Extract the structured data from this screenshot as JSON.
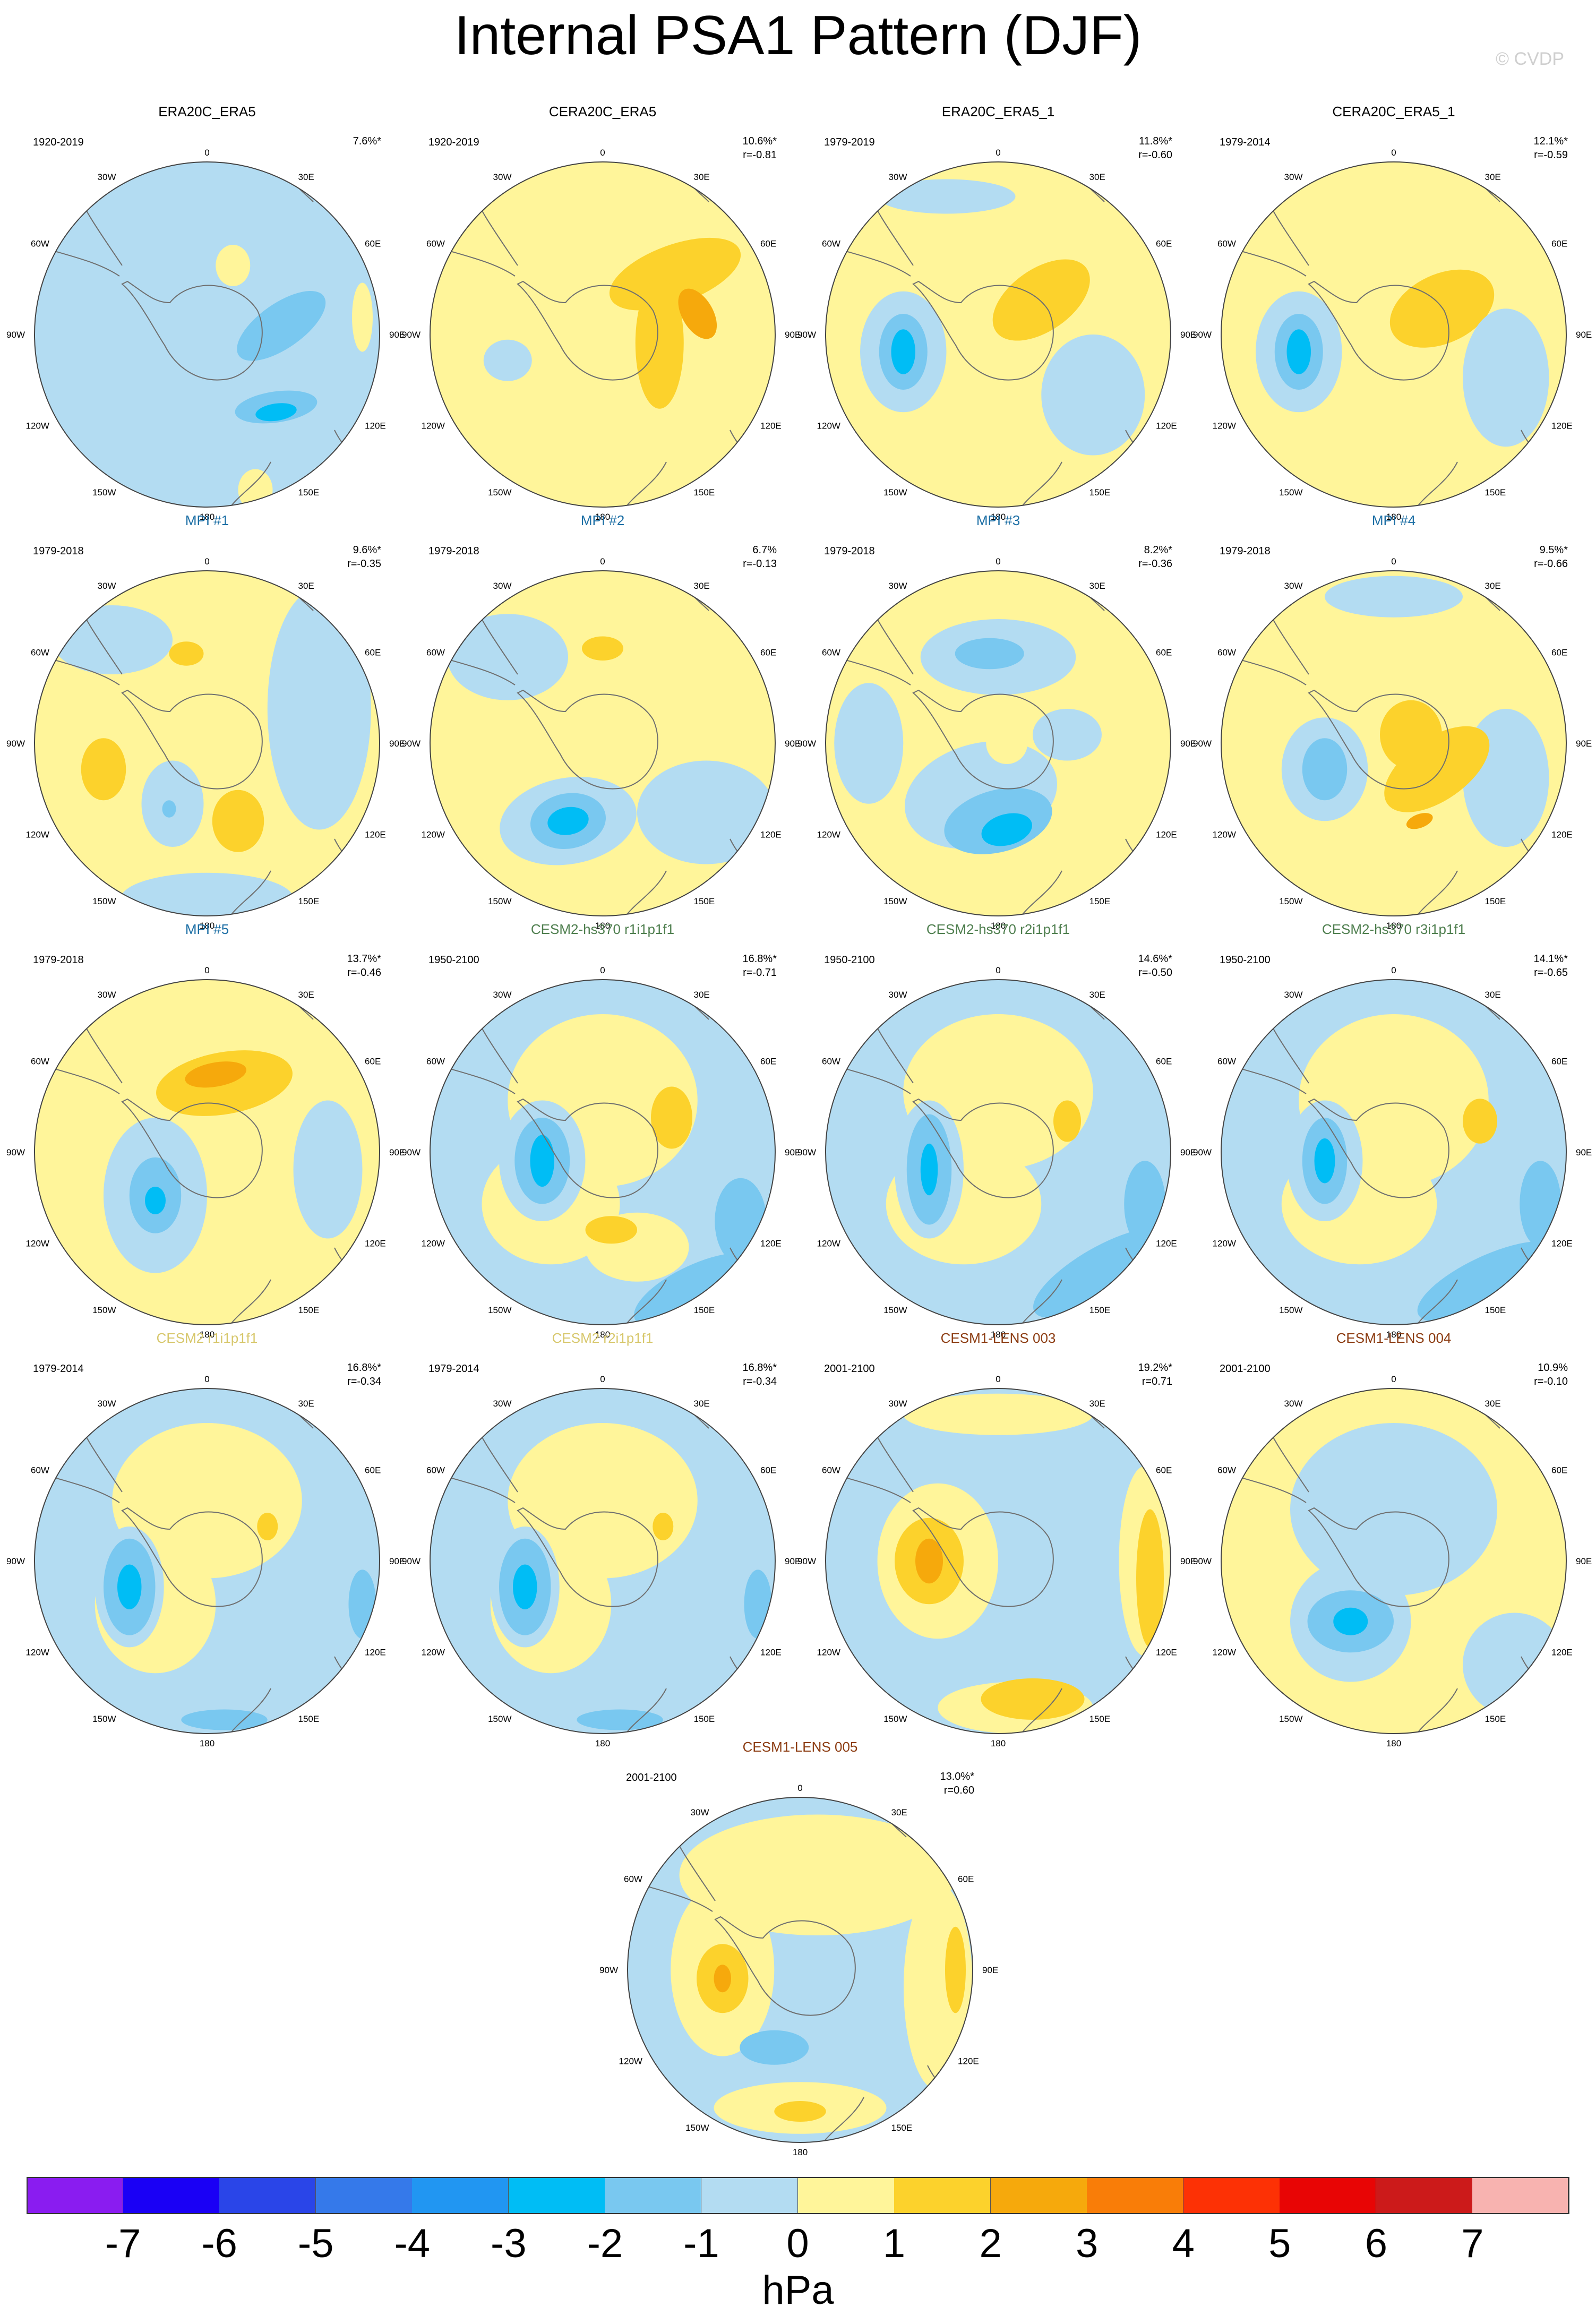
{
  "title": "Internal PSA1 Pattern (DJF)",
  "credit": "© CVDP",
  "colors": {
    "y1": "#fff59a",
    "y2": "#fcd22c",
    "y3": "#f6a90c",
    "b1": "#b3dcf2",
    "b2": "#79c8f0",
    "b3": "#00bdf5",
    "land": "none",
    "coast": "#6f6f6f",
    "border": "#444444"
  },
  "longitude_labels": [
    "0",
    "30E",
    "60E",
    "90E",
    "120E",
    "150E",
    "180",
    "150W",
    "120W",
    "90W",
    "60W",
    "30W"
  ],
  "panels": [
    {
      "title": "ERA20C_ERA5",
      "title_color": "#000000",
      "period": "1920-2019",
      "pct": "7.6%*",
      "r": "",
      "base": "b1",
      "blobs": [
        [
          "b2",
          0.43,
          -0.05,
          0.3,
          0.13,
          -35
        ],
        [
          "b2",
          0.4,
          0.42,
          0.24,
          0.09,
          -8
        ],
        [
          "b3",
          0.4,
          0.45,
          0.12,
          0.05,
          -8
        ],
        [
          "y1",
          0.15,
          -0.4,
          0.1,
          0.12,
          0
        ],
        [
          "y1",
          0.28,
          0.9,
          0.1,
          0.12,
          0
        ],
        [
          "y1",
          0.9,
          -0.1,
          0.06,
          0.2,
          0
        ]
      ]
    },
    {
      "title": "CERA20C_ERA5",
      "title_color": "#000000",
      "period": "1920-2019",
      "pct": "10.6%*",
      "r": "r=-0.81",
      "base": "y1",
      "blobs": [
        [
          "y2",
          0.42,
          -0.35,
          0.4,
          0.17,
          -20
        ],
        [
          "y2",
          0.33,
          0.05,
          0.14,
          0.38,
          0
        ],
        [
          "y3",
          0.55,
          -0.12,
          0.09,
          0.16,
          -30
        ],
        [
          "b1",
          -0.55,
          0.15,
          0.14,
          0.12,
          0
        ]
      ]
    },
    {
      "title": "ERA20C_ERA5_1",
      "title_color": "#000000",
      "period": "1979-2019",
      "pct": "11.8%*",
      "r": "r=-0.60",
      "base": "y1",
      "blobs": [
        [
          "y2",
          0.25,
          -0.2,
          0.32,
          0.18,
          -35
        ],
        [
          "b1",
          -0.55,
          0.1,
          0.25,
          0.35,
          0
        ],
        [
          "b1",
          0.55,
          0.35,
          0.3,
          0.35,
          0
        ],
        [
          "b1",
          -0.3,
          -0.8,
          0.4,
          0.1,
          0
        ],
        [
          "b2",
          -0.55,
          0.1,
          0.14,
          0.22,
          0
        ],
        [
          "b3",
          -0.55,
          0.1,
          0.07,
          0.13,
          0
        ]
      ]
    },
    {
      "title": "CERA20C_ERA5_1",
      "title_color": "#000000",
      "period": "1979-2014",
      "pct": "12.1%*",
      "r": "r=-0.59",
      "base": "y1",
      "blobs": [
        [
          "y2",
          0.28,
          -0.15,
          0.32,
          0.2,
          -25
        ],
        [
          "b1",
          -0.55,
          0.1,
          0.25,
          0.35,
          0
        ],
        [
          "b1",
          0.65,
          0.25,
          0.25,
          0.4,
          0
        ],
        [
          "b2",
          -0.55,
          0.1,
          0.14,
          0.22,
          0
        ],
        [
          "b3",
          -0.55,
          0.1,
          0.07,
          0.13,
          0
        ]
      ]
    },
    {
      "title": "MPI #1",
      "title_color": "#1d6fa5",
      "period": "1979-2018",
      "pct": "9.6%*",
      "r": "r=-0.35",
      "base": "y1",
      "blobs": [
        [
          "b1",
          0.65,
          -0.2,
          0.3,
          0.7,
          0
        ],
        [
          "b1",
          -0.55,
          -0.6,
          0.35,
          0.2,
          0
        ],
        [
          "b1",
          0.0,
          0.9,
          0.5,
          0.15,
          0
        ],
        [
          "b1",
          -0.2,
          0.35,
          0.18,
          0.25,
          0
        ],
        [
          "y2",
          -0.6,
          0.15,
          0.13,
          0.18,
          0
        ],
        [
          "y2",
          0.18,
          0.45,
          0.15,
          0.18,
          0
        ],
        [
          "y2",
          -0.12,
          -0.52,
          0.1,
          0.07,
          0
        ],
        [
          "b2",
          -0.22,
          0.38,
          0.04,
          0.05,
          0
        ]
      ]
    },
    {
      "title": "MPI #2",
      "title_color": "#1d6fa5",
      "period": "1979-2018",
      "pct": "6.7%",
      "r": "r=-0.13",
      "base": "y1",
      "blobs": [
        [
          "b1",
          -0.55,
          -0.5,
          0.35,
          0.25,
          0
        ],
        [
          "b1",
          -0.2,
          0.45,
          0.4,
          0.25,
          -10
        ],
        [
          "b1",
          0.6,
          0.4,
          0.4,
          0.3,
          0
        ],
        [
          "b2",
          -0.2,
          0.45,
          0.22,
          0.16,
          -10
        ],
        [
          "b3",
          -0.2,
          0.45,
          0.12,
          0.08,
          -10
        ],
        [
          "y2",
          0.0,
          -0.55,
          0.12,
          0.07,
          0
        ]
      ]
    },
    {
      "title": "MPI #3",
      "title_color": "#1d6fa5",
      "period": "1979-2018",
      "pct": "8.2%*",
      "r": "r=-0.36",
      "base": "y1",
      "blobs": [
        [
          "b1",
          0.0,
          -0.5,
          0.45,
          0.22,
          0
        ],
        [
          "b1",
          -0.1,
          0.3,
          0.45,
          0.3,
          -15
        ],
        [
          "b1",
          -0.75,
          0.0,
          0.2,
          0.35,
          0
        ],
        [
          "b1",
          0.4,
          -0.05,
          0.2,
          0.15,
          0
        ],
        [
          "b2",
          0.0,
          0.45,
          0.32,
          0.18,
          -15
        ],
        [
          "b3",
          0.05,
          0.5,
          0.15,
          0.09,
          -15
        ],
        [
          "b2",
          -0.05,
          -0.52,
          0.2,
          0.09,
          0
        ],
        [
          "y1",
          0.05,
          0.0,
          0.12,
          0.12,
          0
        ]
      ]
    },
    {
      "title": "MPI #4",
      "title_color": "#1d6fa5",
      "period": "1979-2018",
      "pct": "9.5%*",
      "r": "r=-0.66",
      "base": "y1",
      "blobs": [
        [
          "b1",
          -0.4,
          0.15,
          0.25,
          0.3,
          0
        ],
        [
          "b1",
          0.65,
          0.2,
          0.25,
          0.4,
          0
        ],
        [
          "b1",
          0.0,
          -0.85,
          0.4,
          0.12,
          0
        ],
        [
          "y2",
          0.25,
          0.15,
          0.35,
          0.18,
          -35
        ],
        [
          "y2",
          0.1,
          -0.05,
          0.18,
          0.2,
          0
        ],
        [
          "b2",
          -0.4,
          0.15,
          0.13,
          0.18,
          0
        ],
        [
          "y3",
          0.15,
          0.45,
          0.08,
          0.04,
          -20
        ]
      ]
    },
    {
      "title": "MPI #5",
      "title_color": "#1d6fa5",
      "period": "1979-2018",
      "pct": "13.7%*",
      "r": "r=-0.46",
      "base": "y1",
      "blobs": [
        [
          "y2",
          0.1,
          -0.4,
          0.4,
          0.18,
          -10
        ],
        [
          "y3",
          0.05,
          -0.45,
          0.18,
          0.07,
          -10
        ],
        [
          "b1",
          -0.3,
          0.25,
          0.3,
          0.45,
          0
        ],
        [
          "b1",
          0.7,
          0.1,
          0.2,
          0.4,
          0
        ],
        [
          "b2",
          -0.3,
          0.25,
          0.15,
          0.22,
          0
        ],
        [
          "b3",
          -0.3,
          0.28,
          0.06,
          0.08,
          0
        ]
      ]
    },
    {
      "title": "CESM2-hs370 r1i1p1f1",
      "title_color": "#4f7f4f",
      "period": "1950-2100",
      "pct": "16.8%*",
      "r": "r=-0.71",
      "base": "b1",
      "blobs": [
        [
          "y1",
          0.0,
          -0.3,
          0.55,
          0.5,
          0
        ],
        [
          "y1",
          -0.3,
          0.3,
          0.4,
          0.35,
          0
        ],
        [
          "y1",
          0.2,
          0.55,
          0.3,
          0.2,
          0
        ],
        [
          "y2",
          0.4,
          -0.2,
          0.12,
          0.18,
          0
        ],
        [
          "y2",
          0.05,
          0.45,
          0.15,
          0.08,
          0
        ],
        [
          "b1",
          -0.35,
          0.05,
          0.25,
          0.35,
          0
        ],
        [
          "b2",
          -0.35,
          0.05,
          0.16,
          0.25,
          0
        ],
        [
          "b3",
          -0.35,
          0.05,
          0.07,
          0.15,
          0
        ],
        [
          "b2",
          0.55,
          0.8,
          0.4,
          0.15,
          -25
        ],
        [
          "b2",
          0.8,
          0.4,
          0.15,
          0.25,
          0
        ]
      ]
    },
    {
      "title": "CESM2-hs370 r2i1p1f1",
      "title_color": "#4f7f4f",
      "period": "1950-2100",
      "pct": "14.6%*",
      "r": "r=-0.50",
      "base": "b1",
      "blobs": [
        [
          "y1",
          0.0,
          -0.35,
          0.55,
          0.45,
          0
        ],
        [
          "y1",
          -0.2,
          0.3,
          0.45,
          0.35,
          0
        ],
        [
          "y2",
          0.4,
          -0.18,
          0.08,
          0.12,
          0
        ],
        [
          "b1",
          -0.4,
          0.1,
          0.2,
          0.4,
          0
        ],
        [
          "b2",
          -0.4,
          0.1,
          0.13,
          0.32,
          0
        ],
        [
          "b3",
          -0.4,
          0.1,
          0.05,
          0.15,
          0
        ],
        [
          "b2",
          0.6,
          0.7,
          0.45,
          0.15,
          -30
        ],
        [
          "b2",
          0.85,
          0.3,
          0.12,
          0.25,
          0
        ]
      ]
    },
    {
      "title": "CESM2-hs370 r3i1p1f1",
      "title_color": "#4f7f4f",
      "period": "1950-2100",
      "pct": "14.1%*",
      "r": "r=-0.65",
      "base": "b1",
      "blobs": [
        [
          "y1",
          0.0,
          -0.3,
          0.55,
          0.5,
          0
        ],
        [
          "y1",
          -0.2,
          0.3,
          0.45,
          0.35,
          0
        ],
        [
          "y2",
          0.5,
          -0.18,
          0.1,
          0.13,
          0
        ],
        [
          "b1",
          -0.4,
          0.05,
          0.22,
          0.35,
          0
        ],
        [
          "b2",
          -0.4,
          0.05,
          0.13,
          0.25,
          0
        ],
        [
          "b3",
          -0.4,
          0.05,
          0.06,
          0.13,
          0
        ],
        [
          "b2",
          0.55,
          0.75,
          0.45,
          0.15,
          -25
        ],
        [
          "b2",
          0.85,
          0.3,
          0.12,
          0.25,
          0
        ]
      ]
    },
    {
      "title": "CESM2 r1i1p1f1",
      "title_color": "#d7c76b",
      "period": "1979-2014",
      "pct": "16.8%*",
      "r": "r=-0.34",
      "base": "b1",
      "blobs": [
        [
          "y1",
          0.0,
          -0.35,
          0.55,
          0.45,
          0
        ],
        [
          "y1",
          -0.3,
          0.25,
          0.35,
          0.4,
          0
        ],
        [
          "y2",
          0.35,
          -0.2,
          0.06,
          0.08,
          0
        ],
        [
          "b1",
          -0.45,
          0.15,
          0.2,
          0.35,
          0
        ],
        [
          "b2",
          -0.45,
          0.15,
          0.15,
          0.28,
          0
        ],
        [
          "b3",
          -0.45,
          0.15,
          0.07,
          0.13,
          0
        ],
        [
          "b2",
          0.1,
          0.92,
          0.25,
          0.06,
          0
        ],
        [
          "b2",
          0.9,
          0.25,
          0.08,
          0.2,
          0
        ]
      ]
    },
    {
      "title": "CESM2 r2i1p1f1",
      "title_color": "#d7c76b",
      "period": "1979-2014",
      "pct": "16.8%*",
      "r": "r=-0.34",
      "base": "b1",
      "blobs": [
        [
          "y1",
          0.0,
          -0.35,
          0.55,
          0.45,
          0
        ],
        [
          "y1",
          -0.3,
          0.25,
          0.35,
          0.4,
          0
        ],
        [
          "y2",
          0.35,
          -0.2,
          0.06,
          0.08,
          0
        ],
        [
          "b1",
          -0.45,
          0.15,
          0.2,
          0.35,
          0
        ],
        [
          "b2",
          -0.45,
          0.15,
          0.15,
          0.28,
          0
        ],
        [
          "b3",
          -0.45,
          0.15,
          0.07,
          0.13,
          0
        ],
        [
          "b2",
          0.1,
          0.92,
          0.25,
          0.06,
          0
        ],
        [
          "b2",
          0.9,
          0.25,
          0.08,
          0.2,
          0
        ]
      ]
    },
    {
      "title": "CESM1-LENS 003",
      "title_color": "#8c3c12",
      "period": "2001-2100",
      "pct": "19.2%*",
      "r": "r=0.71",
      "base": "b1",
      "blobs": [
        [
          "y1",
          -0.35,
          0.0,
          0.35,
          0.45,
          0
        ],
        [
          "y1",
          0.0,
          -0.85,
          0.55,
          0.12,
          0
        ],
        [
          "y1",
          0.1,
          0.85,
          0.45,
          0.15,
          0
        ],
        [
          "y1",
          0.85,
          0.0,
          0.15,
          0.55,
          0
        ],
        [
          "y2",
          -0.4,
          0.0,
          0.2,
          0.25,
          0
        ],
        [
          "y3",
          -0.4,
          0.0,
          0.08,
          0.13,
          0
        ],
        [
          "y2",
          0.2,
          0.8,
          0.3,
          0.12,
          0
        ],
        [
          "y2",
          0.88,
          0.1,
          0.08,
          0.4,
          0
        ]
      ]
    },
    {
      "title": "CESM1-LENS 004",
      "title_color": "#8c3c12",
      "period": "2001-2100",
      "pct": "10.9%",
      "r": "r=-0.10",
      "base": "y1",
      "blobs": [
        [
          "b1",
          0.0,
          -0.3,
          0.6,
          0.5,
          0
        ],
        [
          "b1",
          -0.25,
          0.35,
          0.35,
          0.35,
          0
        ],
        [
          "b1",
          0.7,
          0.6,
          0.3,
          0.3,
          0
        ],
        [
          "b2",
          -0.25,
          0.35,
          0.25,
          0.18,
          0
        ],
        [
          "b3",
          -0.25,
          0.35,
          0.1,
          0.08,
          0
        ]
      ]
    },
    {
      "title": "CESM1-LENS 005",
      "title_color": "#8c3c12",
      "period": "2001-2100",
      "pct": "13.0%*",
      "r": "r=0.60",
      "base": "b1",
      "blobs": [
        [
          "y1",
          0.1,
          -0.55,
          0.8,
          0.35,
          0
        ],
        [
          "y1",
          -0.45,
          0.0,
          0.3,
          0.5,
          0
        ],
        [
          "y1",
          0.8,
          0.1,
          0.2,
          0.6,
          0
        ],
        [
          "y1",
          0.0,
          0.8,
          0.5,
          0.15,
          0
        ],
        [
          "y2",
          -0.45,
          0.05,
          0.15,
          0.2,
          0
        ],
        [
          "y3",
          -0.45,
          0.05,
          0.05,
          0.08,
          0
        ],
        [
          "y2",
          0.9,
          0.0,
          0.06,
          0.25,
          0
        ],
        [
          "b2",
          -0.15,
          0.45,
          0.2,
          0.1,
          0
        ],
        [
          "y2",
          0.0,
          0.82,
          0.15,
          0.06,
          0
        ]
      ]
    }
  ],
  "colorbar": {
    "labels": [
      "-7",
      "-6",
      "-5",
      "-4",
      "-3",
      "-2",
      "-1",
      "0",
      "1",
      "2",
      "3",
      "4",
      "5",
      "6",
      "7"
    ],
    "colors": [
      "#8a1cf0",
      "#1a00f5",
      "#2a45e8",
      "#3579ea",
      "#2196f2",
      "#00bdf5",
      "#79c8f0",
      "#b3dcf2",
      "#fff59a",
      "#fcd22c",
      "#f6a90c",
      "#f97d08",
      "#fd3105",
      "#e80505",
      "#cc1a1a",
      "#f8b3b0"
    ],
    "unit": "hPa"
  }
}
